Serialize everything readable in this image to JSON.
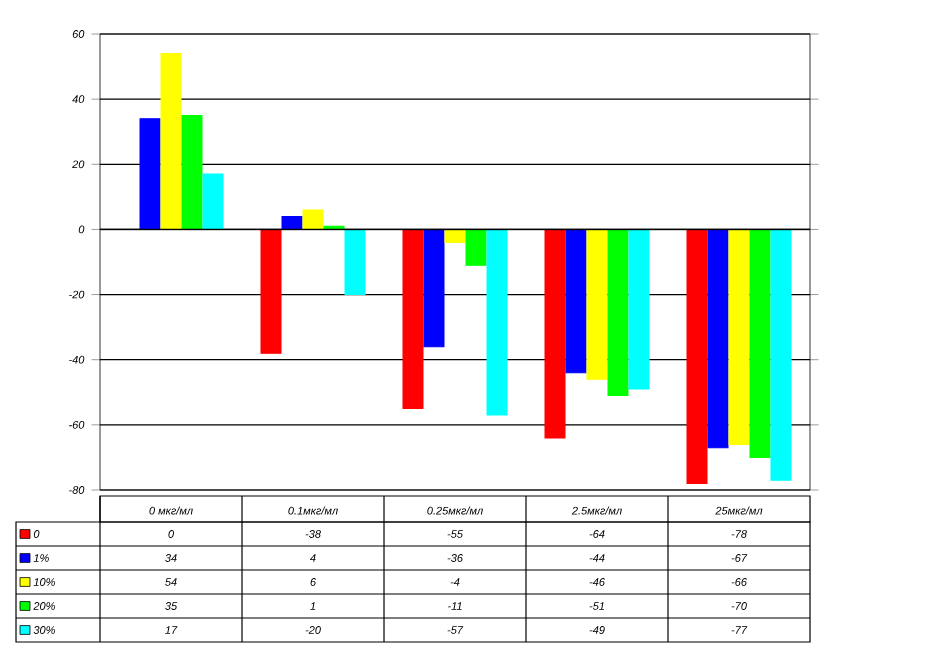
{
  "chart_data": {
    "type": "bar",
    "categories": [
      "0 мкг/мл",
      "0.1мкг/мл",
      "0.25мкг/мл",
      "2.5мкг/мл",
      "25мкг/мл"
    ],
    "series": [
      {
        "name": "0",
        "color": "#ff0000",
        "values": [
          0,
          -38,
          -55,
          -64,
          -78
        ]
      },
      {
        "name": "1%",
        "color": "#0000ff",
        "values": [
          34,
          4,
          -36,
          -44,
          -67
        ]
      },
      {
        "name": "10%",
        "color": "#ffff00",
        "values": [
          54,
          6,
          -4,
          -46,
          -66
        ]
      },
      {
        "name": "20%",
        "color": "#00ff00",
        "values": [
          35,
          1,
          -11,
          -51,
          -70
        ]
      },
      {
        "name": "30%",
        "color": "#00ffff",
        "values": [
          17,
          -20,
          -57,
          -49,
          -77
        ]
      }
    ],
    "ylim": [
      -80,
      60
    ],
    "yticks": [
      -80,
      -60,
      -40,
      -20,
      0,
      20,
      40,
      60
    ],
    "grid": "y",
    "legend": "bottom left",
    "data_labels": true
  }
}
